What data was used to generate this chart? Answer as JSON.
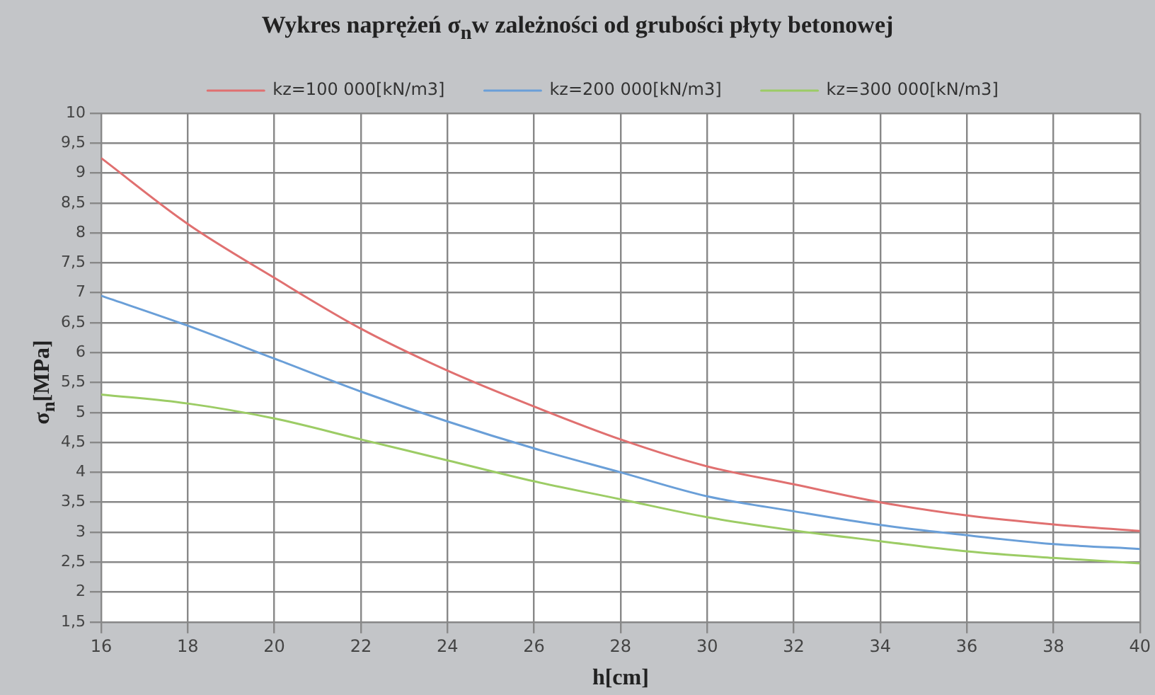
{
  "chart_data": {
    "type": "line",
    "title": "Wykres naprężeń σ$_{n}$w zależności od grubości płyty betonowej",
    "xlabel": "h[cm]",
    "ylabel": "σ$_{n}$[MPa]",
    "x": [
      16,
      18,
      20,
      22,
      24,
      26,
      28,
      30,
      32,
      34,
      36,
      38,
      40
    ],
    "series": [
      {
        "name": "kz=100 000[kN/m3]",
        "color": "#e07070",
        "values": [
          9.25,
          8.15,
          7.25,
          6.4,
          5.7,
          5.1,
          4.55,
          4.1,
          3.8,
          3.5,
          3.28,
          3.13,
          3.02
        ]
      },
      {
        "name": "kz=200 000[kN/m3]",
        "color": "#6a9fd8",
        "values": [
          6.95,
          6.45,
          5.9,
          5.35,
          4.85,
          4.4,
          4.0,
          3.6,
          3.35,
          3.12,
          2.95,
          2.8,
          2.72
        ]
      },
      {
        "name": "kz=300 000[kN/m3]",
        "color": "#9ccc65",
        "values": [
          5.3,
          5.15,
          4.9,
          4.55,
          4.2,
          3.85,
          3.55,
          3.25,
          3.03,
          2.85,
          2.68,
          2.57,
          2.48
        ]
      }
    ],
    "xlim": [
      16,
      40
    ],
    "xticks": [
      16,
      18,
      20,
      22,
      24,
      26,
      28,
      30,
      32,
      34,
      36,
      38,
      40
    ],
    "ylim": [
      1.5,
      10
    ],
    "yticks": [
      {
        "value": 1.5,
        "label": "1,5"
      },
      2,
      {
        "value": 2.5,
        "label": "2,5"
      },
      3,
      {
        "value": 3.5,
        "label": "3,5"
      },
      4,
      {
        "value": 4.5,
        "label": "4,5"
      },
      5,
      {
        "value": 5.5,
        "label": "5,5"
      },
      6,
      {
        "value": 6.5,
        "label": "6,5"
      },
      7,
      {
        "value": 7.5,
        "label": "7,5"
      },
      8,
      {
        "value": 8.5,
        "label": "8,5"
      },
      9,
      {
        "value": 9.5,
        "label": "9,5"
      },
      10
    ],
    "grid": true,
    "legend": "top",
    "marker": "none",
    "line_style": "solid"
  }
}
